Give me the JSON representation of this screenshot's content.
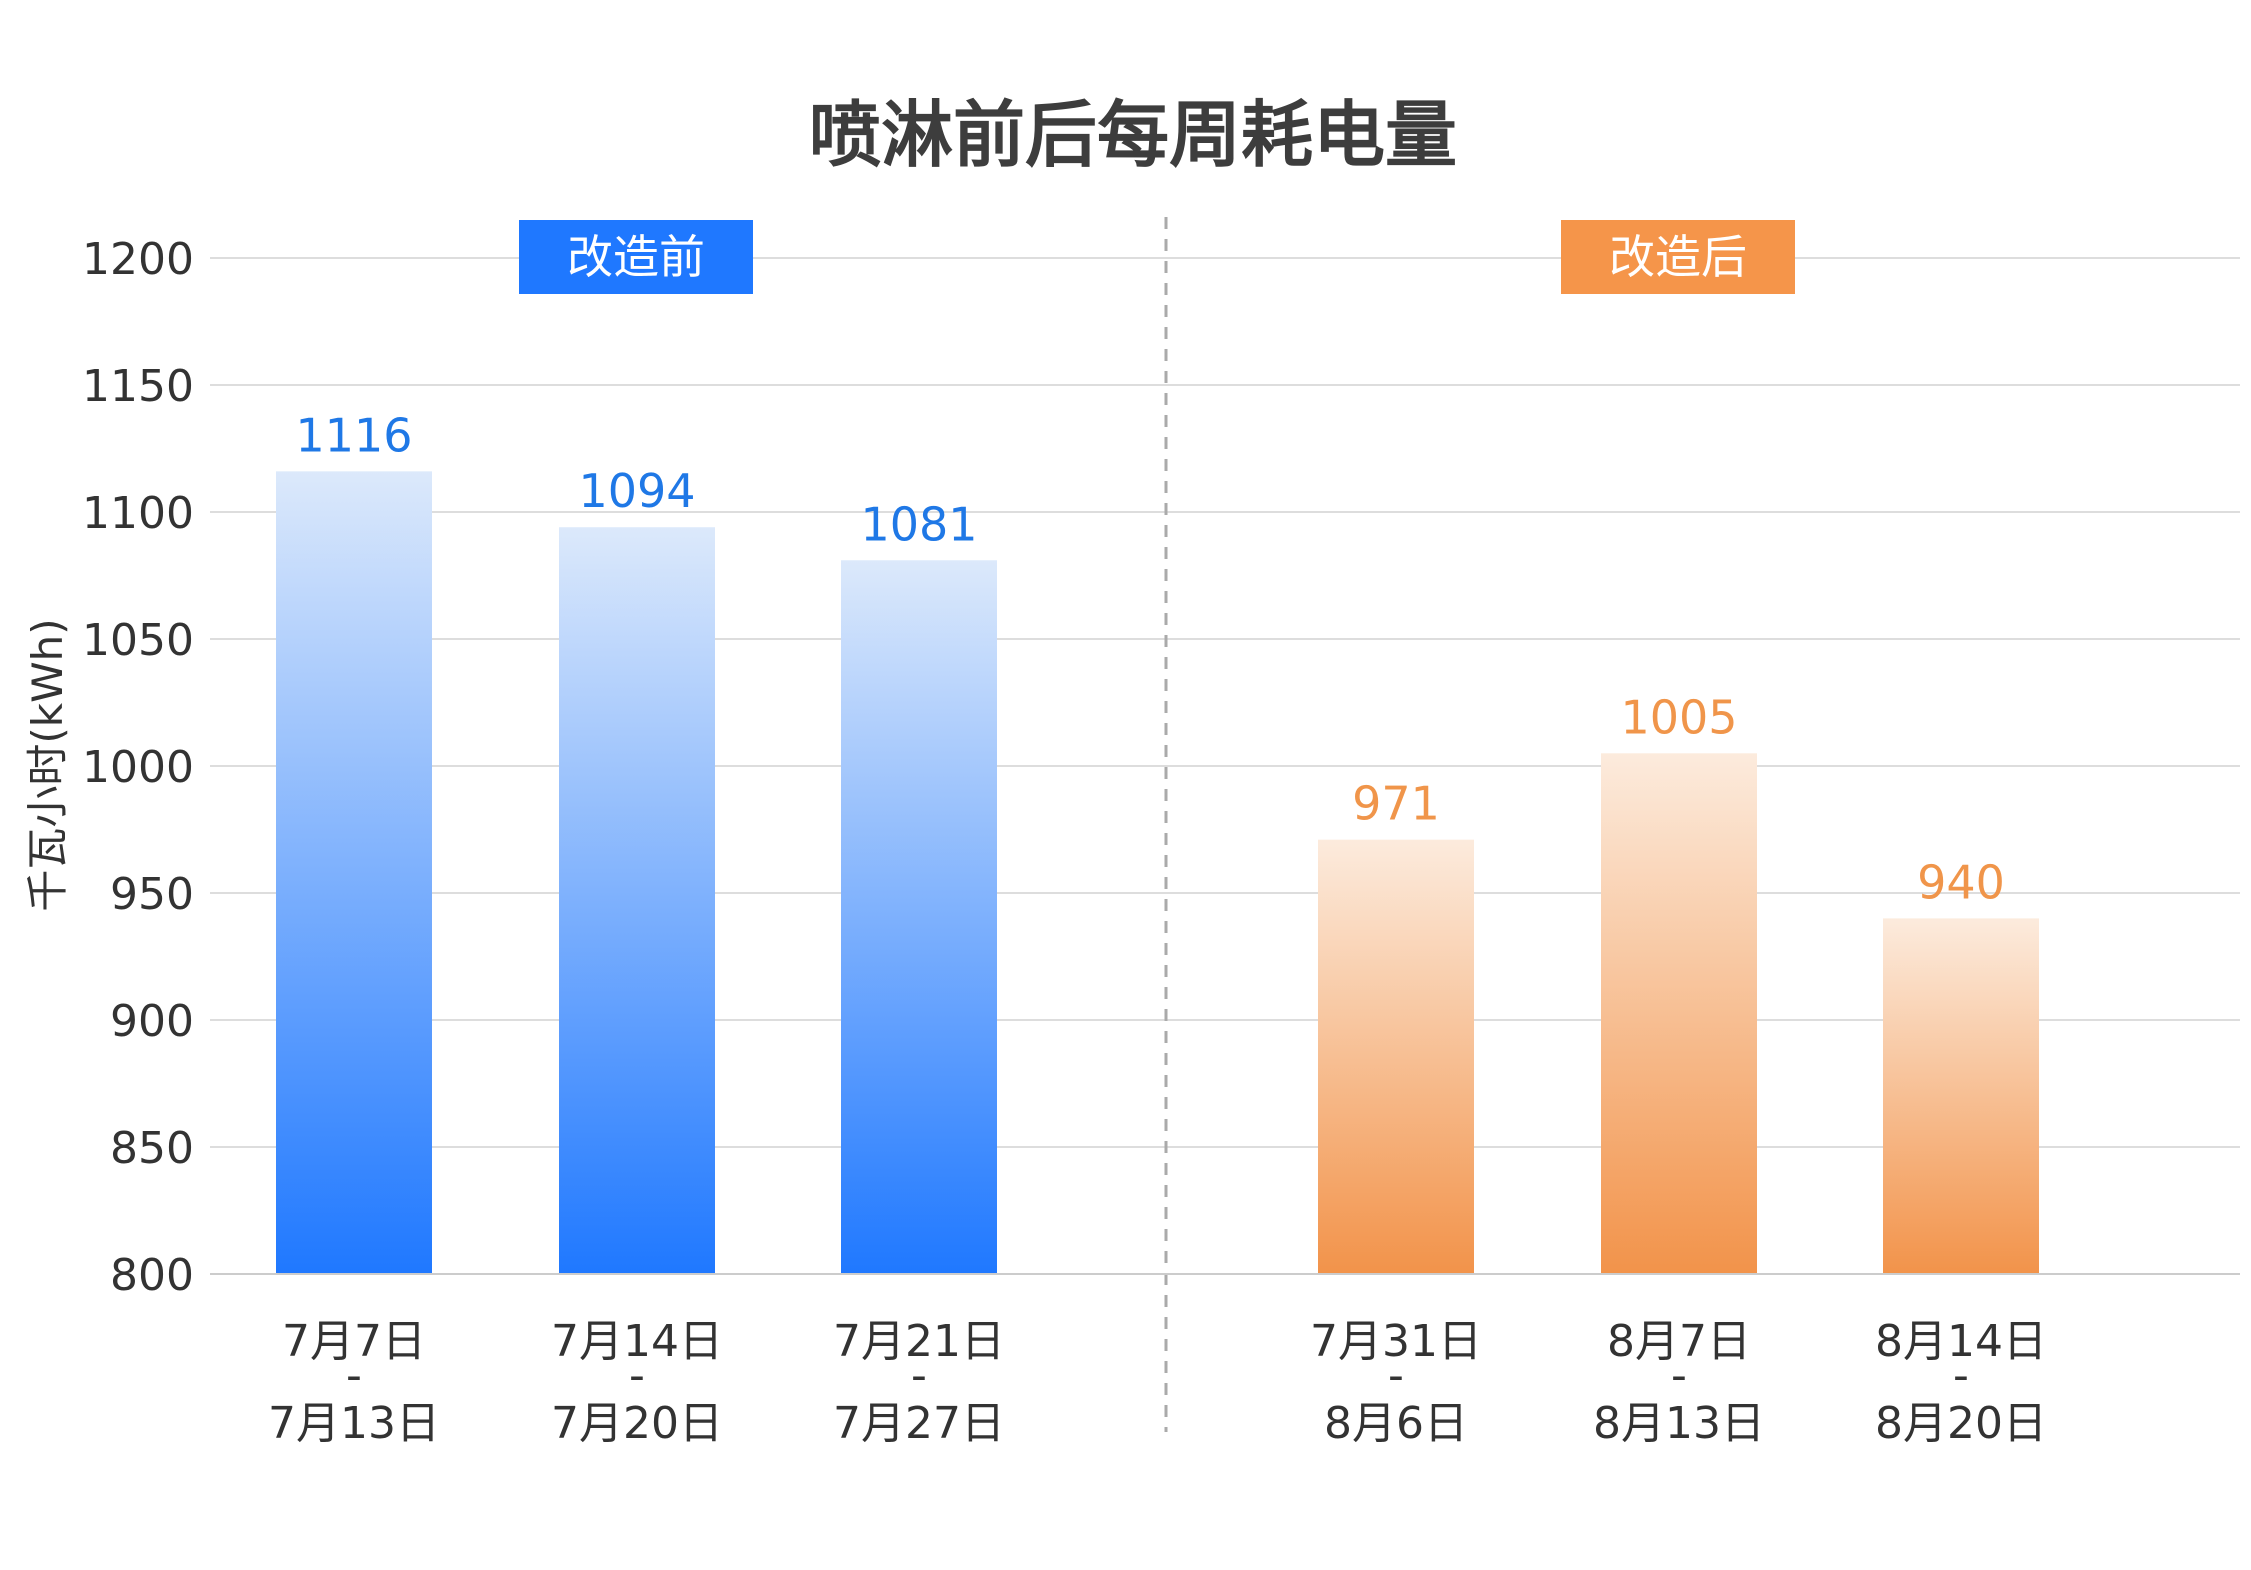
{
  "chart_data": {
    "type": "bar",
    "title": "喷淋前后每周耗电量",
    "ylabel": "千瓦小时(kWh)",
    "ylim": [
      800,
      1200
    ],
    "yticks": [
      800,
      850,
      900,
      950,
      1000,
      1050,
      1100,
      1150,
      1200
    ],
    "grid": true,
    "groups": [
      {
        "name": "改造前",
        "color": "#1f78ff",
        "categories": [
          {
            "line1": "7月7日",
            "sep": "-",
            "line2": "7月13日"
          },
          {
            "line1": "7月14日",
            "sep": "-",
            "line2": "7月20日"
          },
          {
            "line1": "7月21日",
            "sep": "-",
            "line2": "7月27日"
          }
        ],
        "values": [
          1116,
          1094,
          1081
        ]
      },
      {
        "name": "改造后",
        "color": "#f5954a",
        "categories": [
          {
            "line1": "7月31日",
            "sep": "-",
            "line2": "8月6日"
          },
          {
            "line1": "8月7日",
            "sep": "-",
            "line2": "8月13日"
          },
          {
            "line1": "8月14日",
            "sep": "-",
            "line2": "8月20日"
          }
        ],
        "values": [
          971,
          1005,
          940
        ]
      }
    ]
  },
  "colors": {
    "before_label": "#1f78e6",
    "after_label": "#f0954a",
    "grid": "#dddddd",
    "divider": "#aaaaaa"
  }
}
